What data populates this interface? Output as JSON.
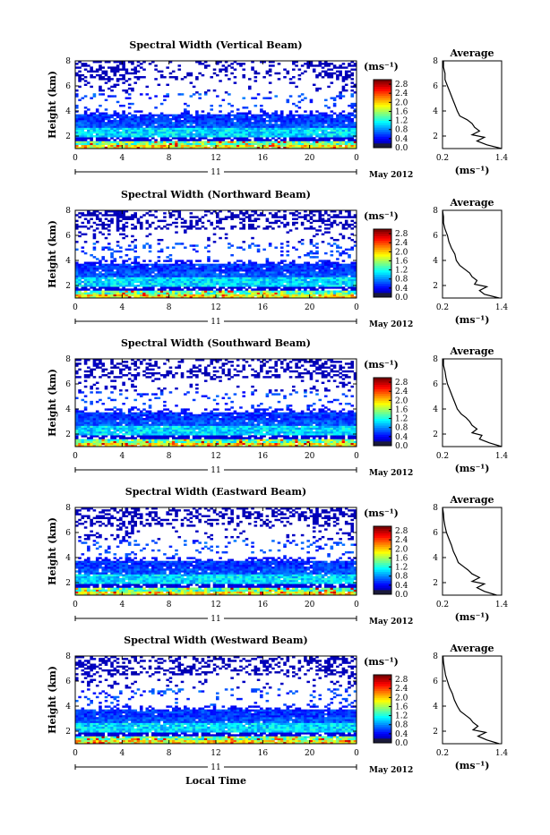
{
  "chart_data": [
    {
      "type": "heatmap",
      "title": "Spectral Width (Vertical Beam)",
      "ylabel": "Height (km)",
      "x_ticks": [
        "0",
        "4",
        "8",
        "12",
        "16",
        "20",
        "0"
      ],
      "y_ticks": [
        "2",
        "4",
        "6",
        "8"
      ],
      "xlim": [
        0,
        24
      ],
      "ylim": [
        1.0,
        8.0
      ],
      "date_center": "11",
      "date_label": "May 2012",
      "colorbar": {
        "unit": "(ms⁻¹)",
        "ticks": [
          "0.0",
          "0.4",
          "0.8",
          "1.2",
          "1.6",
          "2.0",
          "2.4",
          "2.8"
        ],
        "range": [
          0.0,
          3.0
        ]
      },
      "average": {
        "title": "Average",
        "xlabel": "(ms⁻¹)",
        "x_ticks": [
          "0.2",
          "1.4"
        ],
        "xlim": [
          0.2,
          1.4
        ],
        "y_ticks": [
          "2",
          "4",
          "6",
          "8"
        ],
        "ylim": [
          1.0,
          8.0
        ],
        "height_km": [
          1.0,
          1.3,
          1.6,
          1.9,
          2.1,
          2.4,
          2.7,
          3.0,
          3.3,
          3.6,
          4.0,
          4.5,
          5.0,
          5.5,
          6.0,
          6.5,
          7.0,
          7.5,
          8.0
        ],
        "width": [
          1.4,
          1.1,
          0.9,
          1.05,
          0.8,
          0.95,
          0.85,
          0.8,
          0.7,
          0.55,
          0.5,
          0.45,
          0.4,
          0.35,
          0.3,
          0.25,
          0.25,
          0.22,
          0.22
        ]
      }
    },
    {
      "type": "heatmap",
      "title": "Spectral Width (Northward Beam)",
      "ylabel": "Height (km)",
      "x_ticks": [
        "0",
        "4",
        "8",
        "12",
        "16",
        "20",
        "0"
      ],
      "y_ticks": [
        "2",
        "4",
        "6",
        "8"
      ],
      "xlim": [
        0,
        24
      ],
      "ylim": [
        1.0,
        8.0
      ],
      "date_center": "11",
      "date_label": "May 2012",
      "colorbar": {
        "unit": "(ms⁻¹)",
        "ticks": [
          "0.0",
          "0.4",
          "0.8",
          "1.2",
          "1.6",
          "2.0",
          "2.4",
          "2.8"
        ],
        "range": [
          0.0,
          3.0
        ]
      },
      "average": {
        "title": "Average",
        "xlabel": "(ms⁻¹)",
        "x_ticks": [
          "0.2",
          "1.4"
        ],
        "xlim": [
          0.2,
          1.4
        ],
        "y_ticks": [
          "2",
          "4",
          "6",
          "8"
        ],
        "ylim": [
          1.0,
          8.0
        ],
        "height_km": [
          1.0,
          1.3,
          1.6,
          1.9,
          2.1,
          2.4,
          2.7,
          3.0,
          3.3,
          3.6,
          4.0,
          4.5,
          5.0,
          5.5,
          6.0,
          6.5,
          7.0,
          7.5,
          8.0
        ],
        "width": [
          1.35,
          1.05,
          0.95,
          1.1,
          0.85,
          0.9,
          0.8,
          0.75,
          0.65,
          0.55,
          0.48,
          0.45,
          0.38,
          0.33,
          0.3,
          0.25,
          0.22,
          0.22,
          0.2
        ]
      }
    },
    {
      "type": "heatmap",
      "title": "Spectral Width (Southward Beam)",
      "ylabel": "Height (km)",
      "x_ticks": [
        "0",
        "4",
        "8",
        "12",
        "16",
        "20",
        "0"
      ],
      "y_ticks": [
        "2",
        "4",
        "6",
        "8"
      ],
      "xlim": [
        0,
        24
      ],
      "ylim": [
        1.0,
        8.0
      ],
      "date_center": "11",
      "date_label": "May 2012",
      "colorbar": {
        "unit": "(ms⁻¹)",
        "ticks": [
          "0.0",
          "0.4",
          "0.8",
          "1.2",
          "1.6",
          "2.0",
          "2.4",
          "2.8"
        ],
        "range": [
          0.0,
          3.0
        ]
      },
      "average": {
        "title": "Average",
        "xlabel": "(ms⁻¹)",
        "x_ticks": [
          "0.2",
          "1.4"
        ],
        "xlim": [
          0.2,
          1.4
        ],
        "y_ticks": [
          "2",
          "4",
          "6",
          "8"
        ],
        "ylim": [
          1.0,
          8.0
        ],
        "height_km": [
          1.0,
          1.3,
          1.6,
          1.9,
          2.1,
          2.4,
          2.7,
          3.0,
          3.3,
          3.6,
          4.0,
          4.5,
          5.0,
          5.5,
          6.0,
          6.5,
          7.0,
          7.5,
          8.0
        ],
        "width": [
          1.4,
          1.15,
          0.95,
          1.0,
          0.8,
          0.9,
          0.8,
          0.75,
          0.68,
          0.58,
          0.5,
          0.45,
          0.4,
          0.35,
          0.3,
          0.27,
          0.25,
          0.22,
          0.22
        ]
      }
    },
    {
      "type": "heatmap",
      "title": "Spectral Width (Eastward Beam)",
      "ylabel": "Height (km)",
      "x_ticks": [
        "0",
        "4",
        "8",
        "12",
        "16",
        "20",
        "0"
      ],
      "y_ticks": [
        "2",
        "4",
        "6",
        "8"
      ],
      "xlim": [
        0,
        24
      ],
      "ylim": [
        1.0,
        8.0
      ],
      "date_center": "11",
      "date_label": "May 2012",
      "colorbar": {
        "unit": "(ms⁻¹)",
        "ticks": [
          "0.0",
          "0.4",
          "0.8",
          "1.2",
          "1.6",
          "2.0",
          "2.4",
          "2.8"
        ],
        "range": [
          0.0,
          3.0
        ]
      },
      "average": {
        "title": "Average",
        "xlabel": "(ms⁻¹)",
        "x_ticks": [
          "0.2",
          "1.4"
        ],
        "xlim": [
          0.2,
          1.4
        ],
        "y_ticks": [
          "2",
          "4",
          "6",
          "8"
        ],
        "ylim": [
          1.0,
          8.0
        ],
        "height_km": [
          1.0,
          1.3,
          1.6,
          1.9,
          2.1,
          2.4,
          2.7,
          3.0,
          3.3,
          3.6,
          4.0,
          4.5,
          5.0,
          5.5,
          6.0,
          6.5,
          7.0,
          7.5,
          8.0
        ],
        "width": [
          1.3,
          1.05,
          0.9,
          1.05,
          0.8,
          0.95,
          0.8,
          0.72,
          0.62,
          0.52,
          0.48,
          0.42,
          0.38,
          0.33,
          0.28,
          0.25,
          0.23,
          0.22,
          0.2
        ]
      }
    },
    {
      "type": "heatmap",
      "title": "Spectral Width (Westward Beam)",
      "ylabel": "Height (km)",
      "xlabel": "Local Time",
      "x_ticks": [
        "0",
        "4",
        "8",
        "12",
        "16",
        "20",
        "0"
      ],
      "y_ticks": [
        "2",
        "4",
        "6",
        "8"
      ],
      "xlim": [
        0,
        24
      ],
      "ylim": [
        1.0,
        8.0
      ],
      "date_center": "11",
      "date_label": "May 2012",
      "colorbar": {
        "unit": "(ms⁻¹)",
        "ticks": [
          "0.0",
          "0.4",
          "0.8",
          "1.2",
          "1.6",
          "2.0",
          "2.4",
          "2.8"
        ],
        "range": [
          0.0,
          3.0
        ]
      },
      "average": {
        "title": "Average",
        "xlabel": "(ms⁻¹)",
        "x_ticks": [
          "0.2",
          "1.4"
        ],
        "xlim": [
          0.2,
          1.4
        ],
        "y_ticks": [
          "2",
          "4",
          "6",
          "8"
        ],
        "ylim": [
          1.0,
          8.0
        ],
        "height_km": [
          1.0,
          1.3,
          1.6,
          1.9,
          2.1,
          2.4,
          2.7,
          3.0,
          3.3,
          3.6,
          4.0,
          4.5,
          5.0,
          5.5,
          6.0,
          6.5,
          7.0,
          7.5,
          8.0
        ],
        "width": [
          1.35,
          1.1,
          0.92,
          1.08,
          0.82,
          0.92,
          0.82,
          0.76,
          0.66,
          0.56,
          0.5,
          0.44,
          0.4,
          0.34,
          0.3,
          0.26,
          0.24,
          0.22,
          0.21
        ]
      }
    }
  ]
}
